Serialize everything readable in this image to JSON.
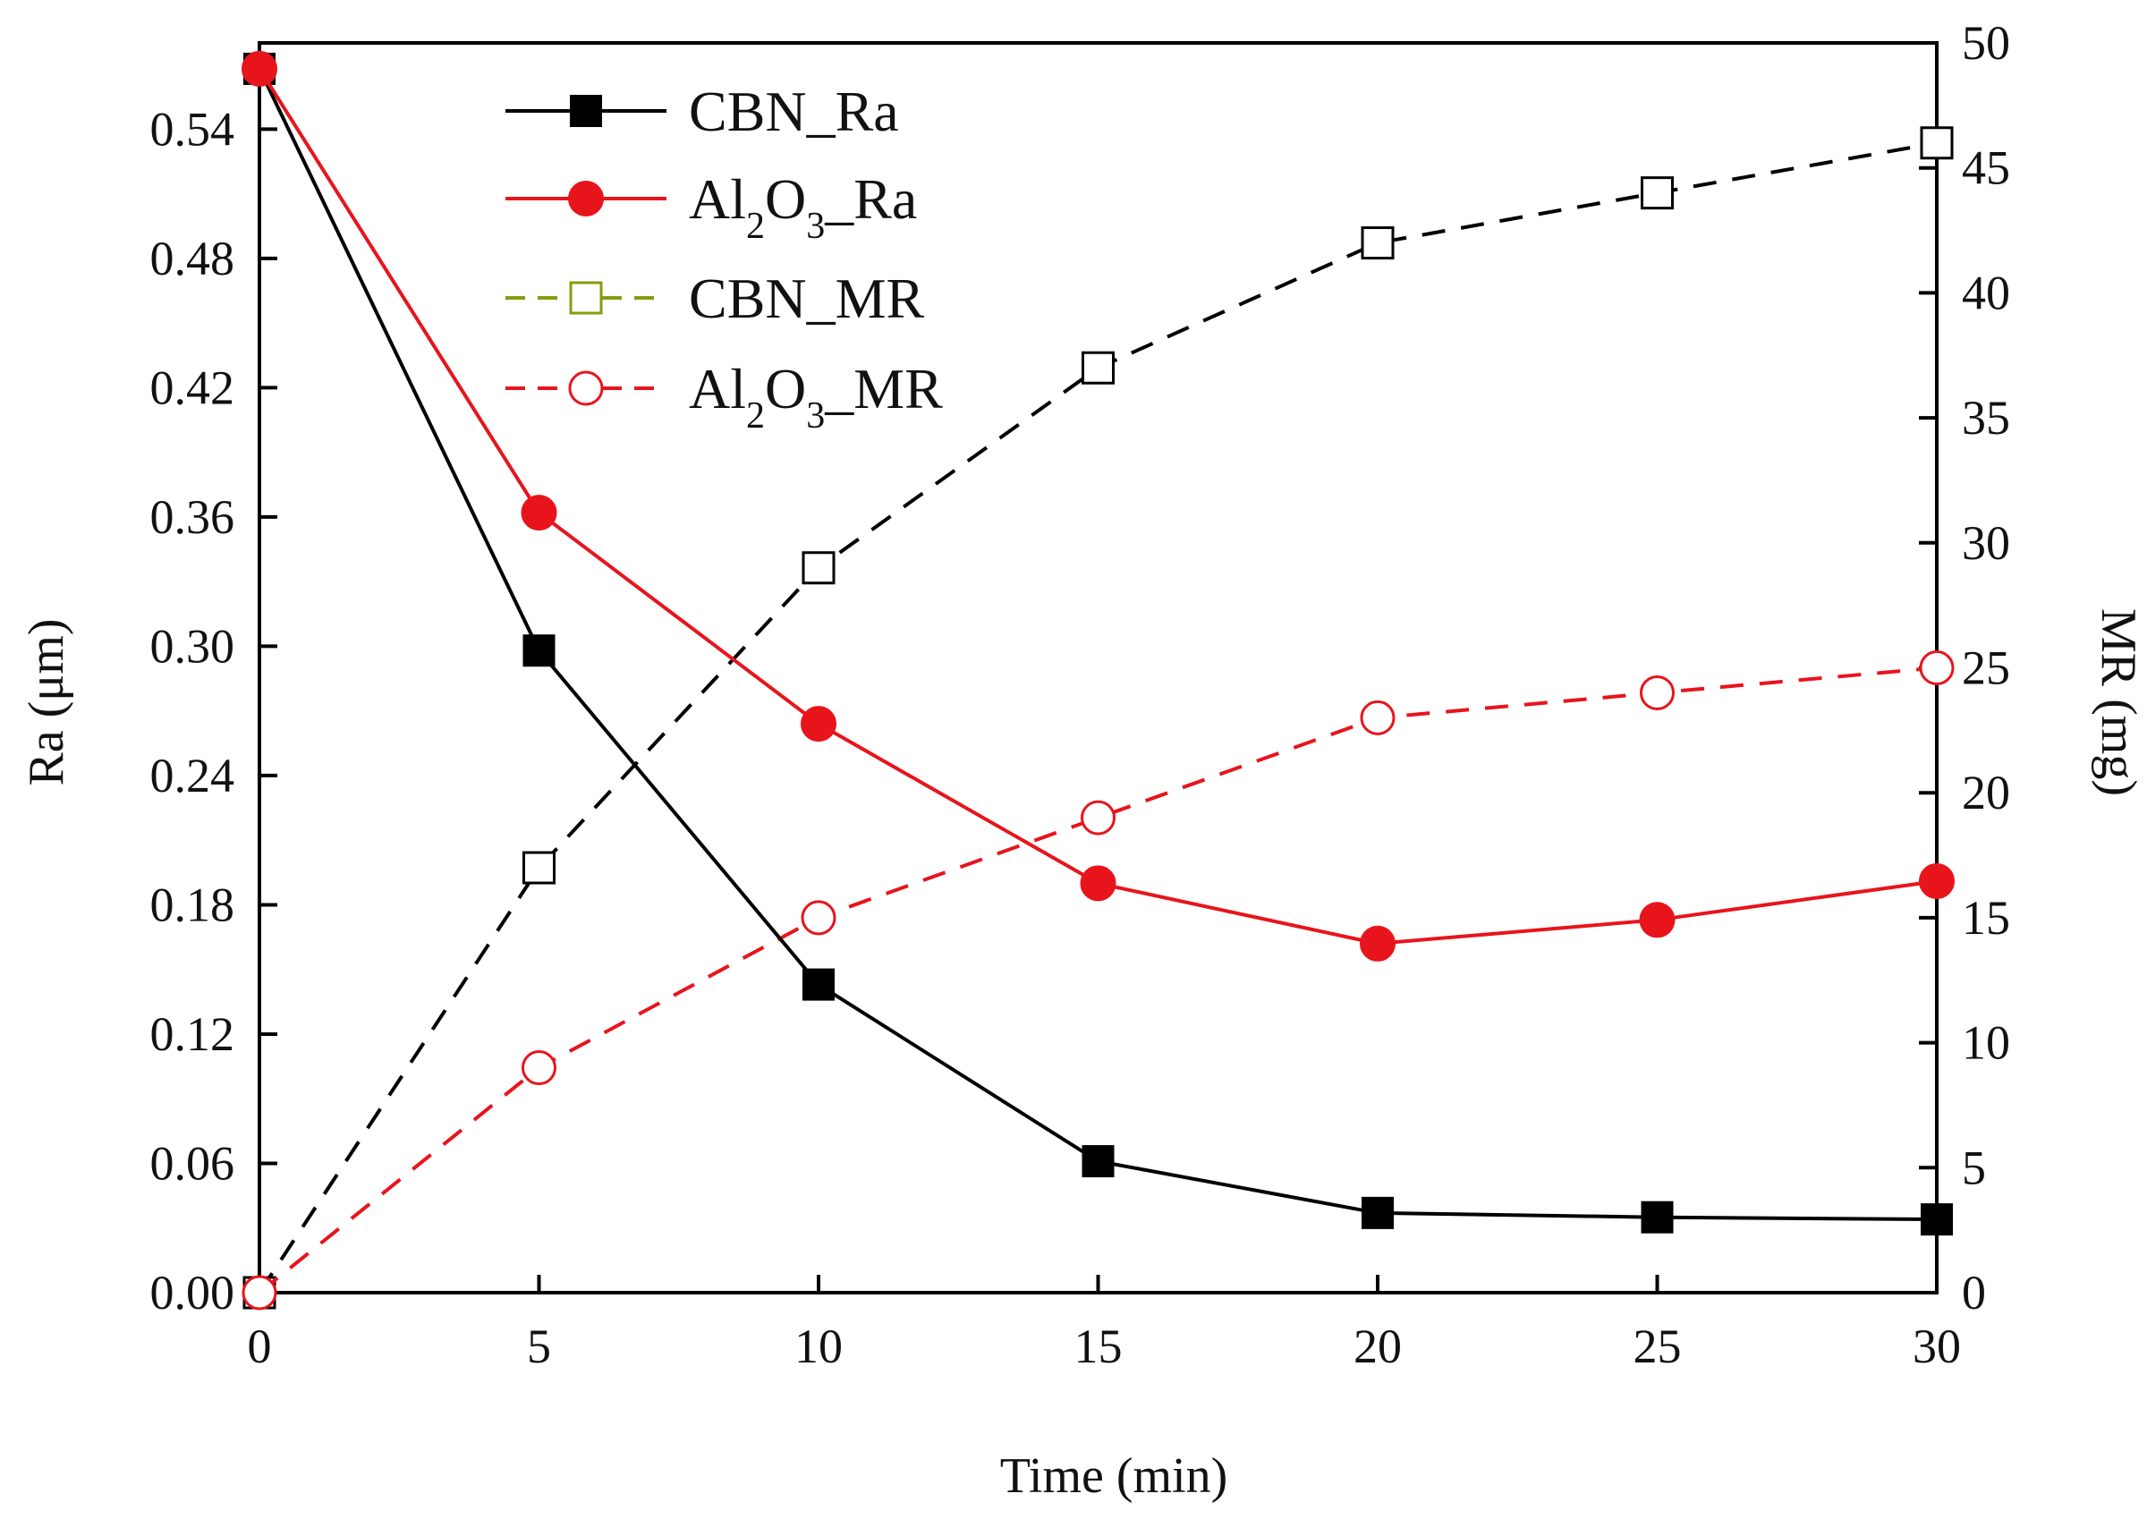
{
  "chart_data": {
    "type": "line",
    "xlabel": "Time (min)",
    "ylabel_left": "Ra (μm)",
    "ylabel_right": "MR (mg)",
    "xlim": [
      0,
      30
    ],
    "ylim_left": [
      0,
      0.58
    ],
    "ylim_right": [
      0,
      50
    ],
    "x_ticks": [
      0,
      5,
      10,
      15,
      20,
      25,
      30
    ],
    "y_left_ticks": [
      "0.00",
      "0.06",
      "0.12",
      "0.18",
      "0.24",
      "0.30",
      "0.36",
      "0.42",
      "0.48",
      "0.54"
    ],
    "y_right_ticks": [
      0,
      5,
      10,
      15,
      20,
      25,
      30,
      35,
      40,
      45,
      50
    ],
    "legend_placement": "top-left",
    "grid": false,
    "series": [
      {
        "name": "CBN_Ra",
        "axis": "left",
        "color": "#000000",
        "line": "solid",
        "marker": "filled-square",
        "x": [
          0,
          5,
          10,
          15,
          20,
          25,
          30
        ],
        "y": [
          0.568,
          0.298,
          0.143,
          0.061,
          0.037,
          0.035,
          0.034
        ]
      },
      {
        "name": "Al2O3_Ra",
        "axis": "left",
        "color": "#e8141c",
        "line": "solid",
        "marker": "filled-circle",
        "x": [
          0,
          5,
          10,
          15,
          20,
          25,
          30
        ],
        "y": [
          0.568,
          0.362,
          0.264,
          0.19,
          0.162,
          0.173,
          0.191
        ]
      },
      {
        "name": "CBN_MR",
        "axis": "right",
        "color": "#000000",
        "legend_color": "#8a9a10",
        "line": "dashed",
        "marker": "open-square",
        "x": [
          0,
          5,
          10,
          15,
          20,
          25,
          30
        ],
        "y": [
          0,
          17,
          29,
          37,
          42,
          44,
          46
        ]
      },
      {
        "name": "Al2O3_MR",
        "axis": "right",
        "color": "#e8141c",
        "line": "dashed",
        "marker": "open-circle",
        "x": [
          0,
          5,
          10,
          15,
          20,
          25,
          30
        ],
        "y": [
          0,
          9,
          15,
          19,
          23,
          24,
          25
        ]
      }
    ],
    "legend": [
      {
        "label": "CBN_Ra",
        "main": "CBN_Ra"
      },
      {
        "label": "Al2O3_Ra",
        "prefix": "Al",
        "sub1": "2",
        "mid": "O",
        "sub2": "3",
        "suffix": "_Ra"
      },
      {
        "label": "CBN_MR",
        "main": "CBN_MR"
      },
      {
        "label": "Al2O3_MR",
        "prefix": "Al",
        "sub1": "2",
        "mid": "O",
        "sub2": "3",
        "suffix": "_MR"
      }
    ]
  }
}
